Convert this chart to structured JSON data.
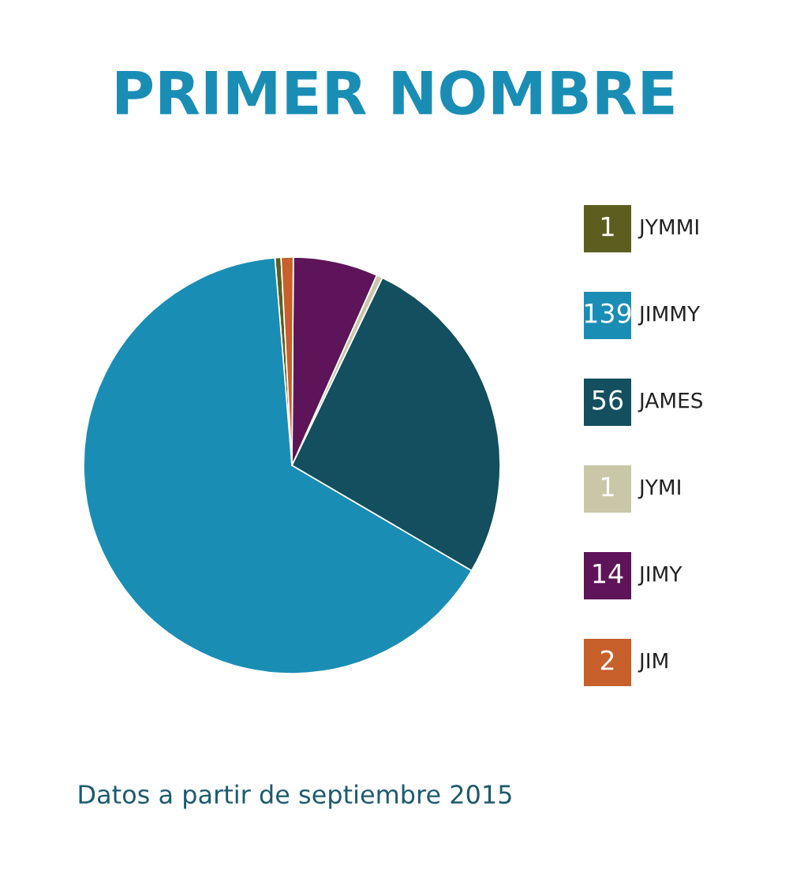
{
  "chart_data": {
    "type": "pie",
    "title": "PRIMER NOMBRE",
    "categories": [
      "JYMMI",
      "JIMMY",
      "JAMES",
      "JYMI",
      "JIMY",
      "JIM"
    ],
    "values": [
      1,
      139,
      56,
      1,
      14,
      2
    ],
    "colors": [
      "#5c5e1f",
      "#1a8db5",
      "#134f5e",
      "#c9c7a8",
      "#5e1459",
      "#c7602a"
    ],
    "data_labels": true,
    "legend": "right",
    "annotations": [
      "Datos a partir de septiembre 2015"
    ]
  }
}
